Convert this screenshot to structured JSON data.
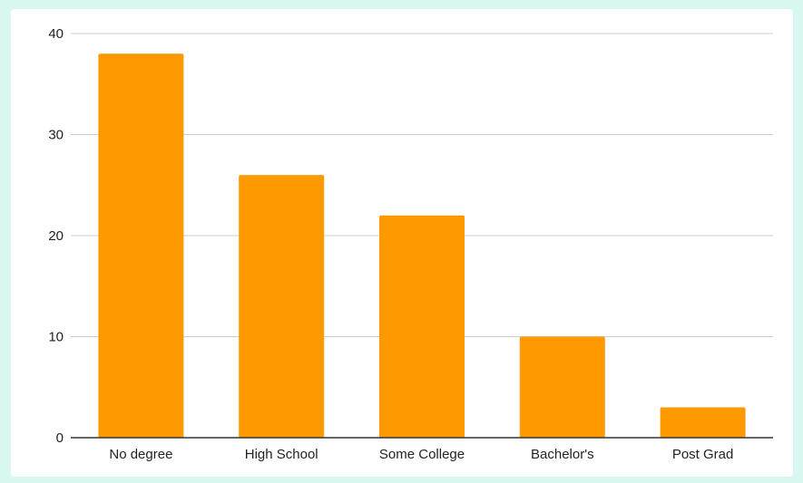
{
  "chart_data": {
    "type": "bar",
    "title": "",
    "xlabel": "",
    "ylabel": "",
    "categories": [
      "No degree",
      "High School",
      "Some College",
      "Bachelor's",
      "Post Grad"
    ],
    "values": [
      38,
      26,
      22,
      10,
      3
    ],
    "ylim": [
      0,
      40
    ],
    "yticks": [
      "0",
      "10",
      "20",
      "30",
      "40"
    ],
    "grid": true,
    "legend": "none",
    "colors": {
      "bar": "#ff9900",
      "grid": "#cccccc",
      "axis": "#333333",
      "page_background": "#d9f7f1",
      "chart_background": "#ffffff"
    }
  }
}
